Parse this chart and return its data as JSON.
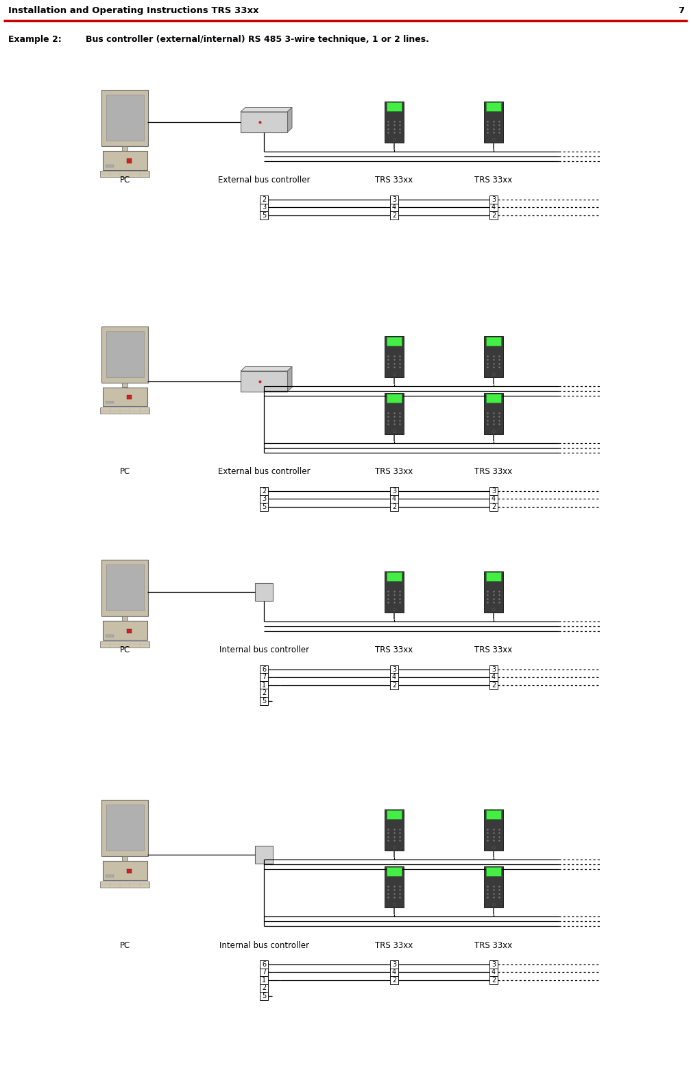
{
  "title_text": "Installation and Operating Instructions TRS 33xx",
  "title_page": "7",
  "example_label": "Example 2:",
  "example_desc": "Bus controller (external/internal) RS 485 3-wire technique, 1 or 2 lines.",
  "bg_color": "#ffffff",
  "text_color": "#000000",
  "header_rule_color": "#cc0000",
  "diagrams": [
    {
      "is_external": true,
      "is_double": false,
      "ctrl_label": "External bus controller",
      "pin_left": [
        "2",
        "3",
        "5"
      ],
      "pin_mid": [
        "3",
        "4",
        "2"
      ],
      "pin_right": [
        "3",
        "4",
        "2"
      ]
    },
    {
      "is_external": true,
      "is_double": true,
      "ctrl_label": "External bus controller",
      "pin_left": [
        "2",
        "3",
        "5"
      ],
      "pin_mid": [
        "3",
        "4",
        "2"
      ],
      "pin_right": [
        "3",
        "4",
        "2"
      ]
    },
    {
      "is_external": false,
      "is_double": false,
      "ctrl_label": "Internal bus controller",
      "pin_left": [
        "6",
        "7",
        "1",
        "2",
        "5"
      ],
      "pin_mid": [
        "3",
        "4",
        "2"
      ],
      "pin_right": [
        "3",
        "4",
        "2"
      ]
    },
    {
      "is_external": false,
      "is_double": true,
      "ctrl_label": "Internal bus controller",
      "pin_left": [
        "6",
        "7",
        "1",
        "2",
        "5"
      ],
      "pin_mid": [
        "3",
        "4",
        "2"
      ],
      "pin_right": [
        "3",
        "4",
        "2"
      ]
    }
  ]
}
